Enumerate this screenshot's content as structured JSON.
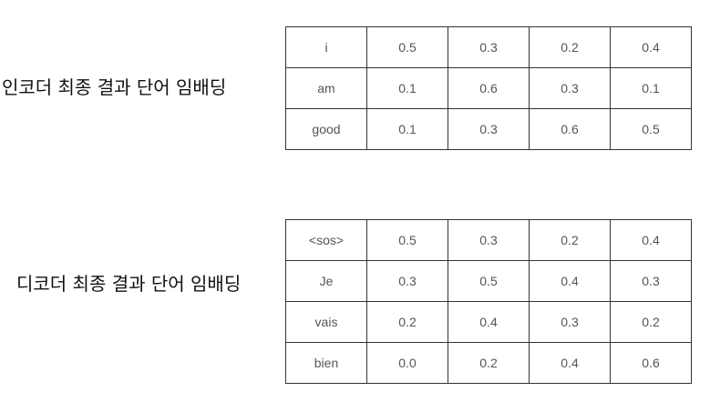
{
  "encoder": {
    "label": "인코더 최종 결과 단어 임배딩",
    "rows": [
      {
        "word": "i",
        "values": [
          "0.5",
          "0.3",
          "0.2",
          "0.4"
        ]
      },
      {
        "word": "am",
        "values": [
          "0.1",
          "0.6",
          "0.3",
          "0.1"
        ]
      },
      {
        "word": "good",
        "values": [
          "0.1",
          "0.3",
          "0.6",
          "0.5"
        ]
      }
    ]
  },
  "decoder": {
    "label": "디코더 최종 결과 단어 임배딩",
    "rows": [
      {
        "word": "<sos>",
        "values": [
          "0.5",
          "0.3",
          "0.2",
          "0.4"
        ]
      },
      {
        "word": "Je",
        "values": [
          "0.3",
          "0.5",
          "0.4",
          "0.3"
        ]
      },
      {
        "word": "vais",
        "values": [
          "0.2",
          "0.4",
          "0.3",
          "0.2"
        ]
      },
      {
        "word": "bien",
        "values": [
          "0.0",
          "0.2",
          "0.4",
          "0.6"
        ]
      }
    ]
  }
}
